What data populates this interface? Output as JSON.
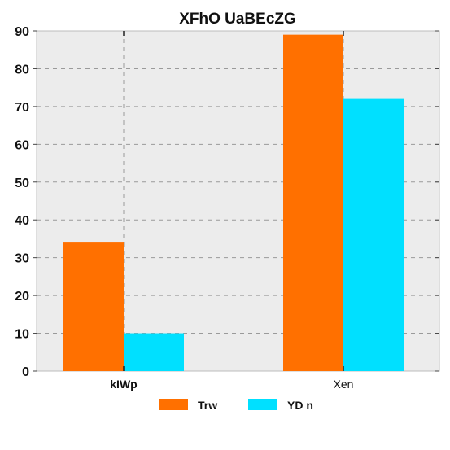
{
  "chart_data": {
    "type": "bar",
    "title": "XFhO UaBEcZG",
    "categories": [
      "kIWp",
      "Xen"
    ],
    "series": [
      {
        "name": "Trw",
        "values": [
          34,
          89
        ],
        "color": "#ff7000"
      },
      {
        "name": "YD n",
        "values": [
          10,
          72
        ],
        "color": "#00e0ff"
      }
    ],
    "xlabel": "",
    "ylabel": "",
    "ylim": [
      0,
      90
    ],
    "yticks": [
      "0",
      "10",
      "20",
      "30",
      "40",
      "50",
      "60",
      "70",
      "80",
      "90"
    ],
    "grid": true,
    "legend": "bottom-center",
    "background_color": "#ececec"
  }
}
